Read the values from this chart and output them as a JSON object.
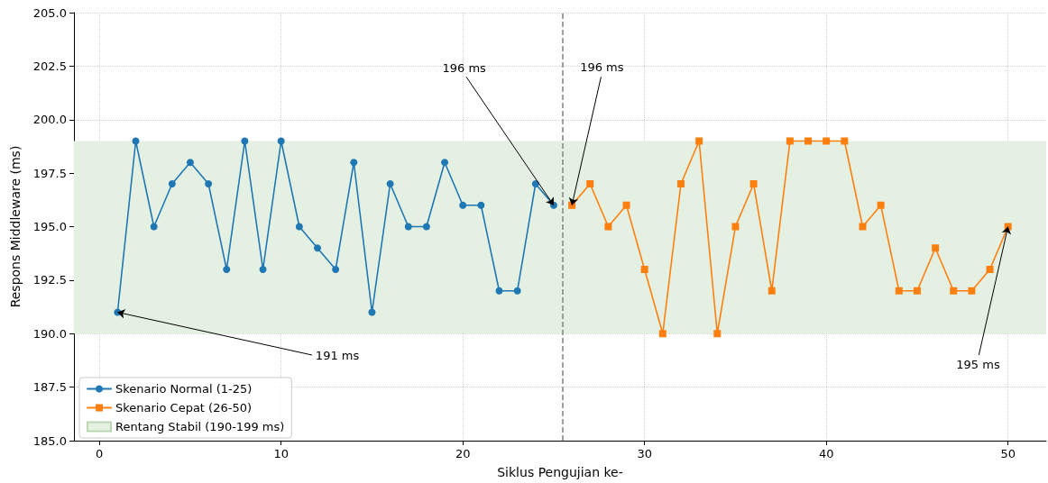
{
  "chart_data": {
    "type": "line",
    "xlabel": "Siklus Pengujian ke-",
    "ylabel": "Respons Middleware (ms)",
    "xlim": [
      -1.4,
      52.1
    ],
    "xticks": [
      0,
      10,
      20,
      30,
      40,
      50
    ],
    "ylim": [
      185,
      205
    ],
    "yticks": [
      {
        "value": 185,
        "label": "185.0"
      },
      {
        "value": 187.5,
        "label": "187.5"
      },
      {
        "value": 190,
        "label": "190.0"
      },
      {
        "value": 192.5,
        "label": "192.5"
      },
      {
        "value": 195,
        "label": "195.0"
      },
      {
        "value": 197.5,
        "label": "197.5"
      },
      {
        "value": 200,
        "label": "200.0"
      },
      {
        "value": 202.5,
        "label": "202.5"
      },
      {
        "value": 205,
        "label": "205.0"
      }
    ],
    "grid": true,
    "legend": "bottom left",
    "line_style": "solid",
    "series": [
      {
        "name": "Skenario Normal (1-25)",
        "color": "#1f77b4",
        "marker": "circle",
        "x": [
          1,
          2,
          3,
          4,
          5,
          6,
          7,
          8,
          9,
          10,
          11,
          12,
          13,
          14,
          15,
          16,
          17,
          18,
          19,
          20,
          21,
          22,
          23,
          24,
          25
        ],
        "values": [
          191,
          199,
          195,
          197,
          198,
          197,
          193,
          199,
          193,
          199,
          195,
          194,
          193,
          198,
          191,
          197,
          195,
          195,
          198,
          196,
          196,
          192,
          192,
          197,
          196
        ]
      },
      {
        "name": "Skenario Cepat (26-50)",
        "color": "#ff7f0e",
        "marker": "square",
        "x": [
          26,
          27,
          28,
          29,
          30,
          31,
          32,
          33,
          34,
          35,
          36,
          37,
          38,
          39,
          40,
          41,
          42,
          43,
          44,
          45,
          46,
          47,
          48,
          49,
          50
        ],
        "values": [
          196,
          197,
          195,
          196,
          193,
          190,
          197,
          199,
          190,
          195,
          197,
          192,
          199,
          199,
          199,
          199,
          195,
          196,
          192,
          192,
          194,
          192,
          192,
          193,
          195
        ]
      }
    ],
    "bands": [
      {
        "axis": "y",
        "from": 190,
        "to": 199,
        "label": "Rentang Stabil (190-199 ms)",
        "color": "#e4f0e2"
      }
    ],
    "ref_lines": [
      {
        "axis": "x",
        "value": 25.5,
        "color": "#808080",
        "line_style": "dashed"
      }
    ],
    "annotations": [
      {
        "text": "191 ms",
        "x": 1,
        "y": 191
      },
      {
        "text": "196 ms",
        "x": 25,
        "y": 196
      },
      {
        "text": "196 ms",
        "x": 26,
        "y": 196
      },
      {
        "text": "195 ms",
        "x": 50,
        "y": 195
      }
    ]
  }
}
